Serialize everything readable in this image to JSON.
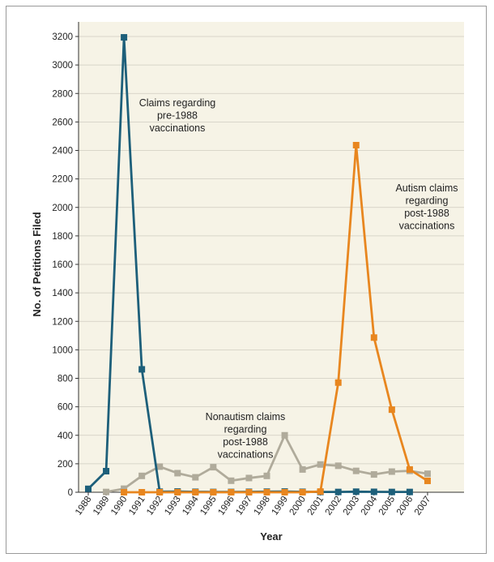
{
  "chart_data": {
    "type": "line",
    "xlabel": "Year",
    "ylabel": "No. of Petitions Filed",
    "ylim": [
      0,
      3200
    ],
    "yticks": [
      0,
      200,
      400,
      600,
      800,
      1000,
      1200,
      1400,
      1600,
      1800,
      2000,
      2200,
      2400,
      2600,
      2800,
      3000,
      3200
    ],
    "xticks": [
      "1988",
      "1989",
      "1990",
      "1991",
      "1992",
      "1993",
      "1994",
      "1995",
      "1996",
      "1997",
      "1998",
      "1999",
      "2000",
      "2001",
      "2002",
      "2003",
      "2004",
      "2005",
      "2006",
      "2007"
    ],
    "grid": "horizontal",
    "plot_background": "#f6f3e6",
    "series": [
      {
        "color": "#1d5f7a",
        "x": [
          1988,
          1989,
          1990,
          1991,
          1992,
          1993,
          1994,
          1995,
          1996,
          1997,
          1998,
          1999,
          2000,
          2001,
          2002,
          2003,
          2004,
          2005,
          2006
        ],
        "y": [
          24,
          148,
          3194,
          863,
          4,
          5,
          3,
          2,
          2,
          3,
          4,
          5,
          3,
          2,
          2,
          4,
          3,
          2,
          2
        ]
      },
      {
        "color": "#b0ab9b",
        "x": [
          1989,
          1990,
          1991,
          1992,
          1993,
          1994,
          1995,
          1996,
          1997,
          1998,
          1999,
          2000,
          2001,
          2002,
          2003,
          2004,
          2005,
          2006,
          2007
        ],
        "y": [
          2,
          25,
          115,
          180,
          134,
          105,
          176,
          81,
          100,
          115,
          400,
          160,
          195,
          186,
          150,
          125,
          145,
          150,
          130
        ]
      },
      {
        "color": "#e8861f",
        "x": [
          1990,
          1991,
          1992,
          1993,
          1994,
          1995,
          1996,
          1997,
          1998,
          1999,
          2000,
          2001,
          2002,
          2003,
          2004,
          2005,
          2006,
          2007
        ],
        "y": [
          0,
          0,
          0,
          0,
          0,
          0,
          0,
          0,
          0,
          0,
          0,
          5,
          770,
          2437,
          1086,
          580,
          160,
          80
        ]
      }
    ],
    "annotations": [
      {
        "lines": [
          "Claims regarding",
          "pre-1988",
          "vaccinations"
        ]
      },
      {
        "lines": [
          "Autism claims",
          "regarding",
          "post-1988",
          "vaccinations"
        ]
      },
      {
        "lines": [
          "Nonautism claims",
          "regarding",
          "post-1988",
          "vaccinations"
        ]
      }
    ]
  }
}
